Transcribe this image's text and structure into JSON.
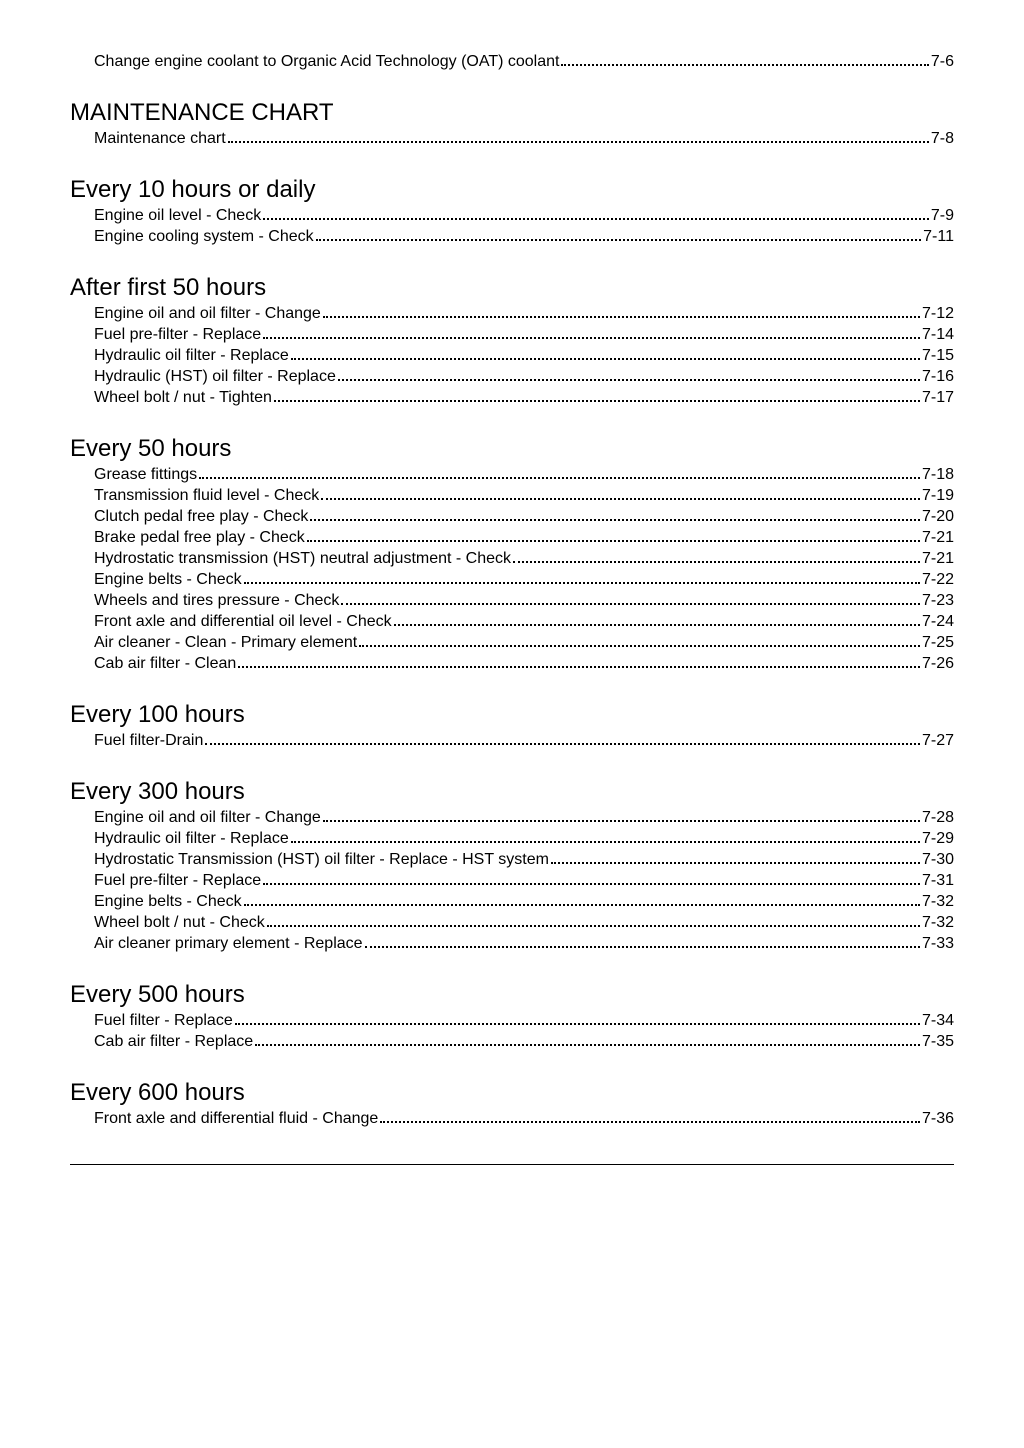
{
  "top_item": {
    "label": "Change engine coolant to Organic Acid Technology (OAT) coolant",
    "page": "7-6"
  },
  "sections": [
    {
      "heading": "MAINTENANCE CHART",
      "items": [
        {
          "label": "Maintenance chart",
          "page": "7-8"
        }
      ]
    },
    {
      "heading": "Every 10 hours or daily",
      "items": [
        {
          "label": "Engine oil level - Check",
          "page": "7-9"
        },
        {
          "label": "Engine cooling system - Check",
          "page": "7-11"
        }
      ]
    },
    {
      "heading": "After first 50 hours",
      "items": [
        {
          "label": "Engine oil and oil filter - Change",
          "page": "7-12"
        },
        {
          "label": "Fuel pre-filter - Replace",
          "page": "7-14"
        },
        {
          "label": "Hydraulic oil filter - Replace",
          "page": "7-15"
        },
        {
          "label": "Hydraulic (HST) oil filter - Replace",
          "page": "7-16"
        },
        {
          "label": "Wheel bolt / nut - Tighten",
          "page": "7-17"
        }
      ]
    },
    {
      "heading": "Every 50 hours",
      "items": [
        {
          "label": "Grease fittings",
          "page": "7-18"
        },
        {
          "label": "Transmission fluid level - Check",
          "page": "7-19"
        },
        {
          "label": "Clutch pedal free play - Check",
          "page": "7-20"
        },
        {
          "label": "Brake pedal free play - Check",
          "page": "7-21"
        },
        {
          "label": "Hydrostatic transmission (HST) neutral adjustment - Check",
          "page": "7-21"
        },
        {
          "label": "Engine belts - Check",
          "page": "7-22"
        },
        {
          "label": "Wheels and tires pressure - Check",
          "page": "7-23"
        },
        {
          "label": "Front axle and differential oil level - Check",
          "page": "7-24"
        },
        {
          "label": "Air cleaner - Clean - Primary element",
          "page": "7-25"
        },
        {
          "label": "Cab air filter - Clean",
          "page": "7-26"
        }
      ]
    },
    {
      "heading": "Every 100 hours",
      "items": [
        {
          "label": "Fuel filter-Drain",
          "page": "7-27"
        }
      ]
    },
    {
      "heading": "Every 300 hours",
      "items": [
        {
          "label": "Engine oil and oil filter - Change",
          "page": "7-28"
        },
        {
          "label": "Hydraulic oil filter - Replace",
          "page": "7-29"
        },
        {
          "label": "Hydrostatic Transmission (HST) oil filter - Replace - HST system",
          "page": "7-30"
        },
        {
          "label": "Fuel pre-filter - Replace",
          "page": "7-31"
        },
        {
          "label": "Engine belts - Check",
          "page": "7-32"
        },
        {
          "label": "Wheel bolt / nut - Check",
          "page": "7-32"
        },
        {
          "label": "Air cleaner primary element - Replace",
          "page": "7-33"
        }
      ]
    },
    {
      "heading": "Every 500 hours",
      "items": [
        {
          "label": "Fuel filter - Replace",
          "page": "7-34"
        },
        {
          "label": "Cab air filter - Replace",
          "page": "7-35"
        }
      ]
    },
    {
      "heading": "Every 600 hours",
      "items": [
        {
          "label": "Front axle and differential fluid - Change",
          "page": "7-36"
        }
      ]
    }
  ]
}
